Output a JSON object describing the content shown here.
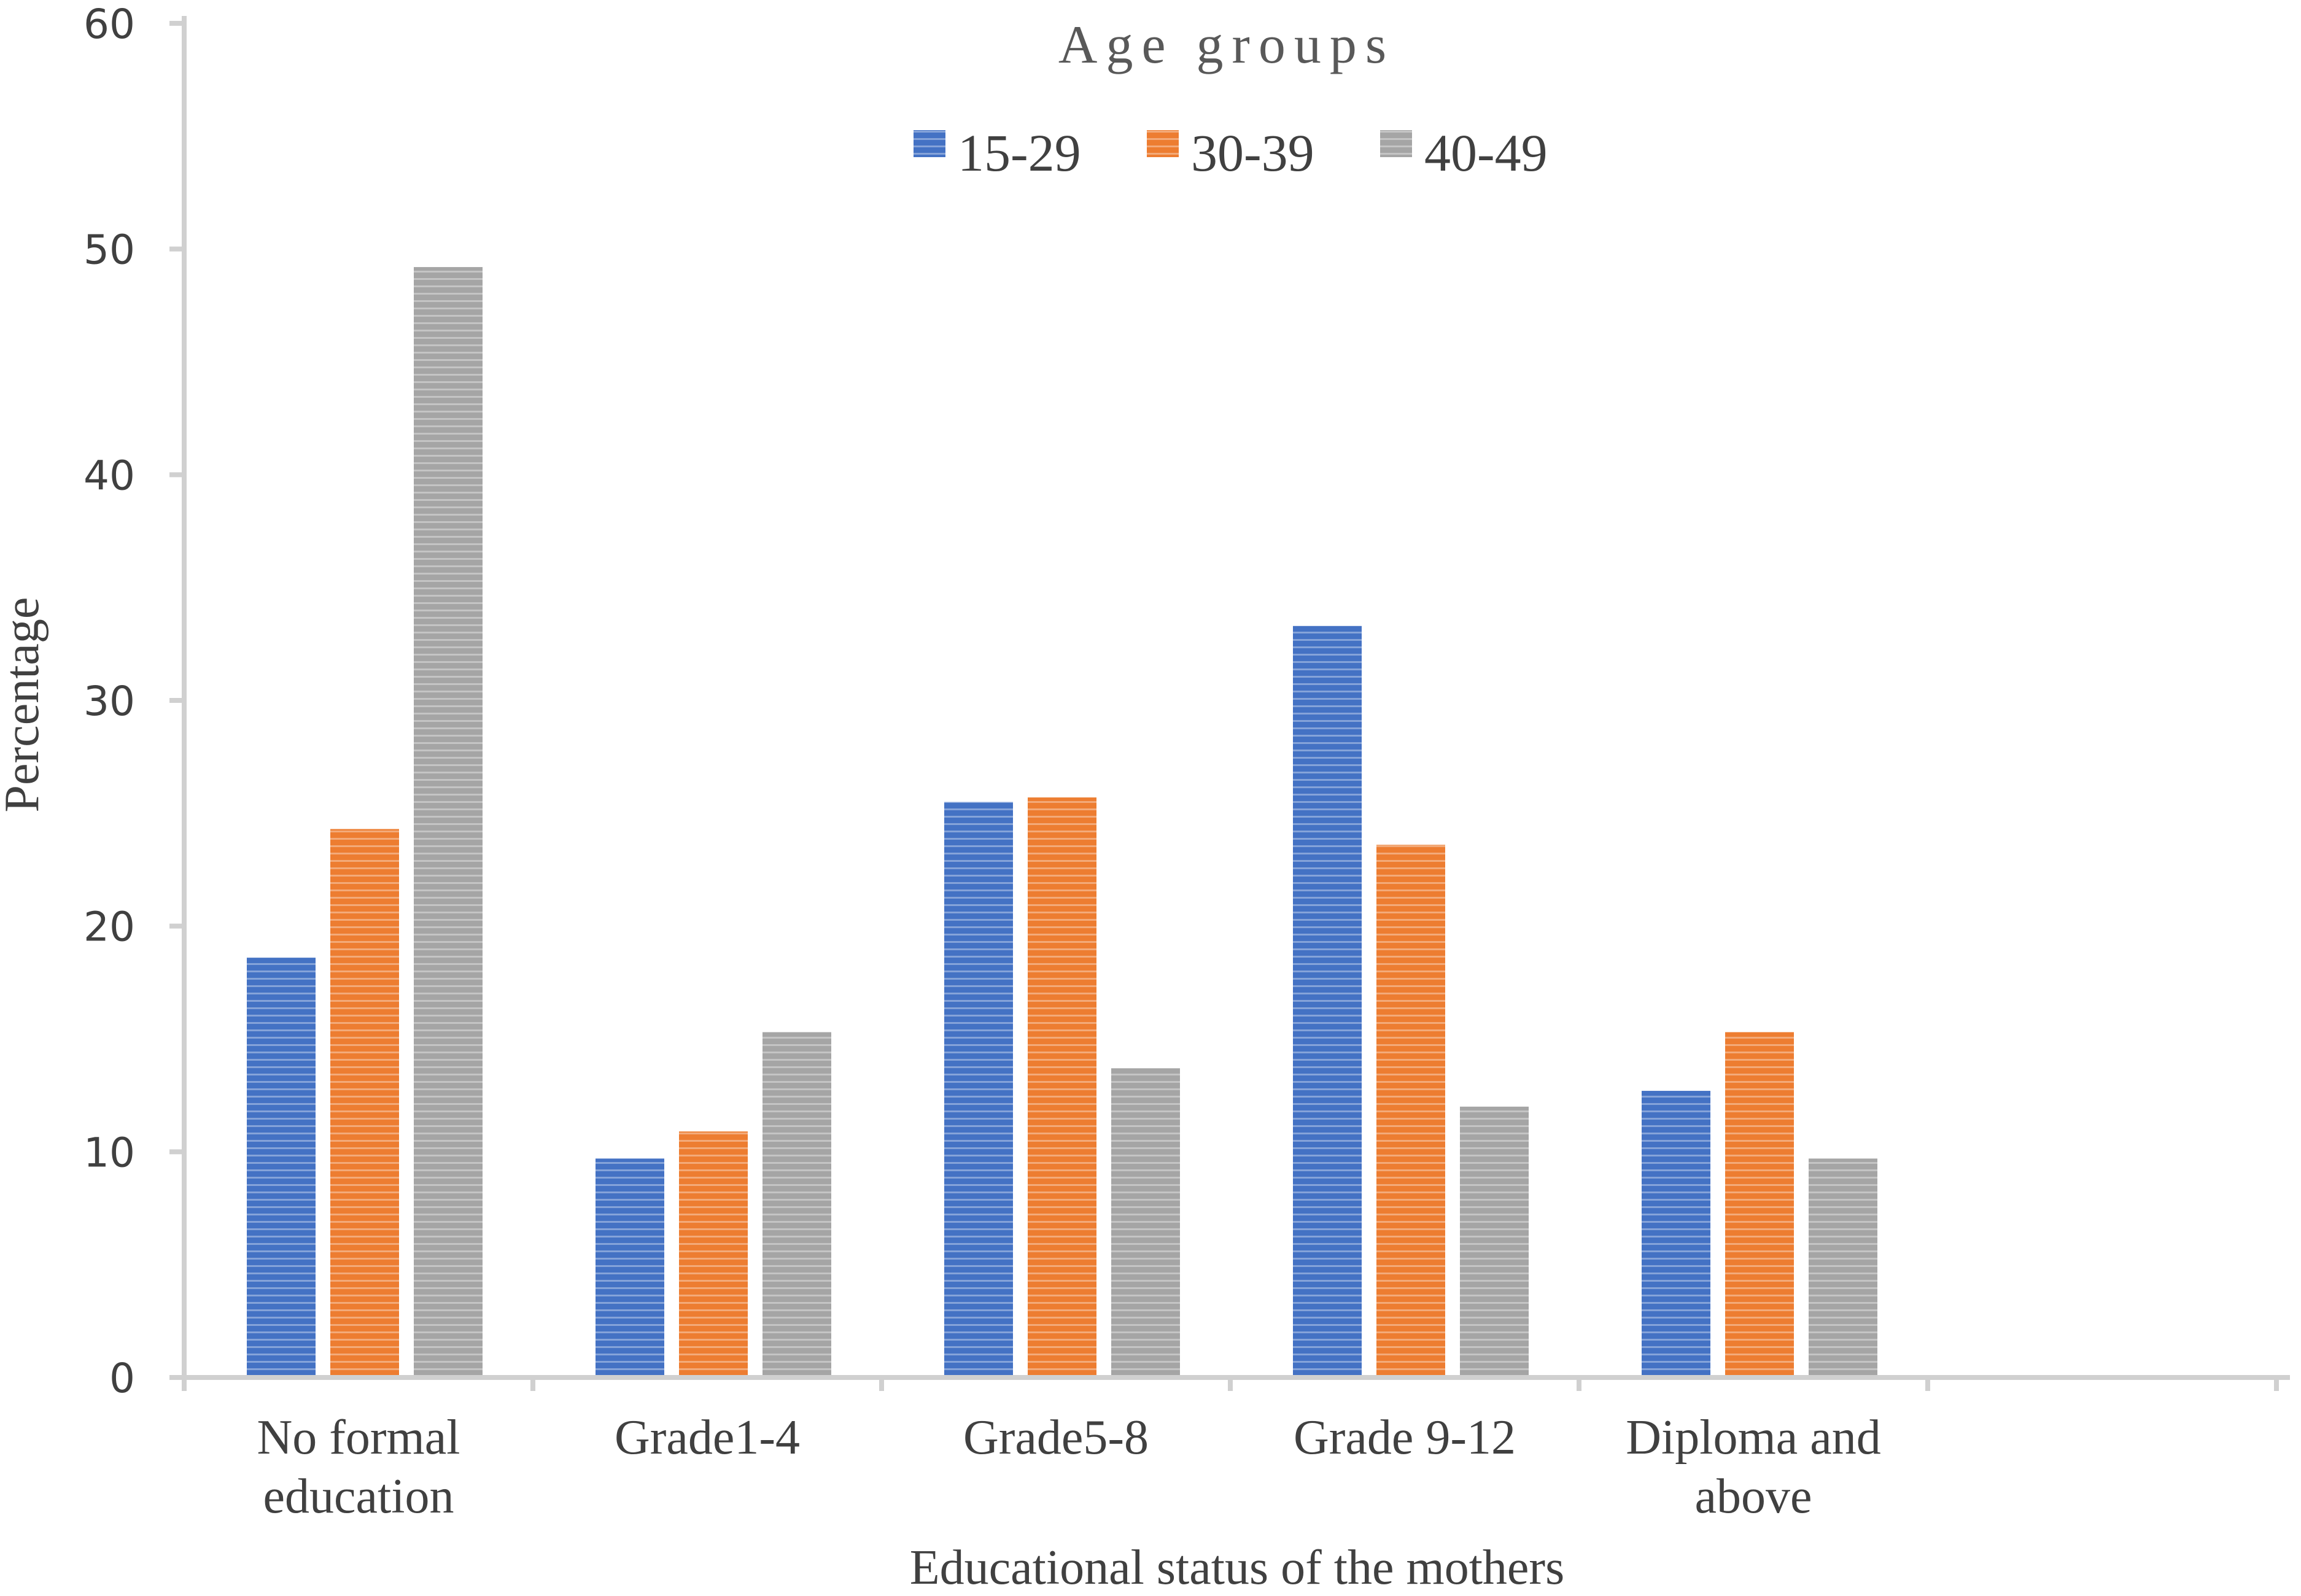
{
  "chart_data": {
    "type": "bar",
    "title": "",
    "xlabel": "Educational status of the mothers",
    "ylabel": "Percentage",
    "ylim": [
      0,
      60
    ],
    "yticks": [
      0,
      10,
      20,
      30,
      40,
      50,
      60
    ],
    "grid": false,
    "legend": {
      "title": "Age groups",
      "placement": "top-center"
    },
    "categories": [
      [
        "No formal",
        "education"
      ],
      [
        "Grade1-4"
      ],
      [
        "Grade5-8"
      ],
      [
        "Grade 9-12"
      ],
      [
        "Diploma and",
        "above"
      ]
    ],
    "empty_trailing_categories": 1,
    "series": [
      {
        "name": "15-29",
        "color": "#4472C4",
        "values": [
          18.6,
          9.7,
          25.5,
          33.3,
          12.7
        ]
      },
      {
        "name": "30-39",
        "color": "#ED7D31",
        "values": [
          24.3,
          10.9,
          25.7,
          23.6,
          15.3
        ]
      },
      {
        "name": "40-49",
        "color": "#A5A5A5",
        "values": [
          49.2,
          15.3,
          13.7,
          12.0,
          9.7
        ]
      }
    ]
  }
}
